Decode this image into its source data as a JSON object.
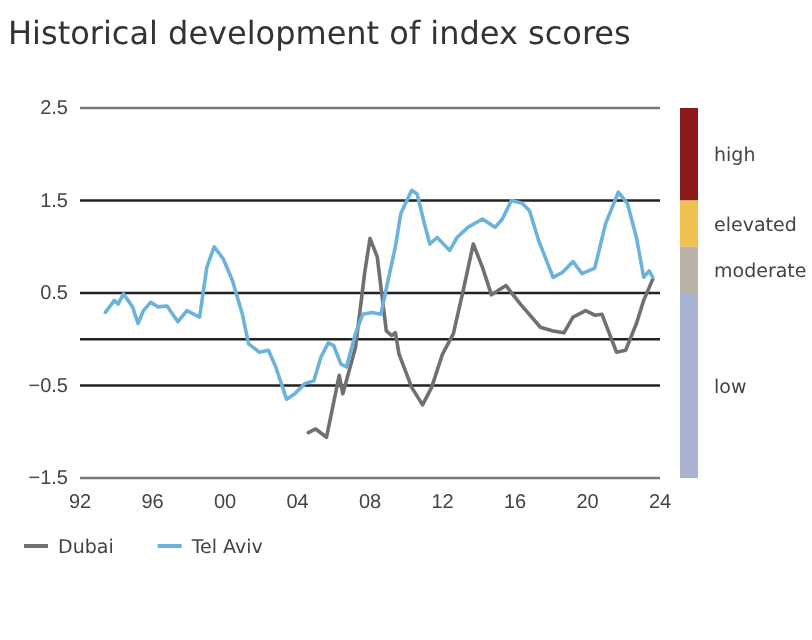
{
  "chart_data": {
    "type": "line",
    "title": "Historical development of index scores",
    "xlim": [
      1992,
      2024
    ],
    "xticks": [
      {
        "value": 1992,
        "label": "92"
      },
      {
        "value": 1996,
        "label": "96"
      },
      {
        "value": 2000,
        "label": "00"
      },
      {
        "value": 2004,
        "label": "04"
      },
      {
        "value": 2008,
        "label": "08"
      },
      {
        "value": 2012,
        "label": "12"
      },
      {
        "value": 2016,
        "label": "16"
      },
      {
        "value": 2020,
        "label": "20"
      },
      {
        "value": 2024,
        "label": "24"
      }
    ],
    "ylim": [
      -1.5,
      2.5
    ],
    "yticks": [
      {
        "value": -1.5,
        "label": "−1.5"
      },
      {
        "value": -0.5,
        "label": "−0.5"
      },
      {
        "value": 0,
        "label": null
      },
      0.5,
      1.5,
      2.5
    ],
    "grid": "y",
    "legend": "bottom",
    "line_style": "solid",
    "marker": "none",
    "annotations": [
      "high",
      "elevated",
      "moderate",
      "low"
    ],
    "series": [
      {
        "name": "Dubai",
        "color": "#707070",
        "x": [
          2004.6,
          2005.0,
          2005.6,
          2006.3,
          2006.5,
          2007.2,
          2007.7,
          2008.0,
          2008.4,
          2008.9,
          2009.2,
          2009.4,
          2009.6,
          2010.3,
          2010.9,
          2011.4,
          2012.0,
          2012.6,
          2013.1,
          2013.7,
          2014.2,
          2014.7,
          2015.5,
          2016.3,
          2017.4,
          2018.1,
          2018.7,
          2019.2,
          2019.9,
          2020.4,
          2020.8,
          2021.6,
          2022.1,
          2022.7,
          2023.1,
          2023.6
        ],
        "values": [
          -1.01,
          -0.97,
          -1.06,
          -0.39,
          -0.59,
          -0.09,
          0.71,
          1.09,
          0.89,
          0.09,
          0.04,
          0.07,
          -0.16,
          -0.52,
          -0.71,
          -0.52,
          -0.16,
          0.06,
          0.49,
          1.03,
          0.78,
          0.48,
          0.58,
          0.38,
          0.13,
          0.09,
          0.07,
          0.24,
          0.31,
          0.26,
          0.27,
          -0.14,
          -0.12,
          0.17,
          0.42,
          0.65
        ]
      },
      {
        "name": "Tel Aviv",
        "color": "#6bb3db",
        "x": [
          1993.4,
          1993.9,
          1994.1,
          1994.4,
          1994.9,
          1995.2,
          1995.5,
          1995.9,
          1996.3,
          1996.8,
          1997.4,
          1997.9,
          1998.6,
          1999.0,
          1999.4,
          1999.9,
          2000.4,
          2000.96,
          2001.3,
          2001.9,
          2002.4,
          2002.8,
          2003.4,
          2003.85,
          2004.4,
          2004.9,
          2005.3,
          2005.7,
          2006.0,
          2006.4,
          2006.7,
          2007.2,
          2007.6,
          2008.1,
          2008.6,
          2009.0,
          2009.4,
          2009.7,
          2010.3,
          2010.6,
          2011.0,
          2011.3,
          2011.7,
          2012.4,
          2012.8,
          2013.4,
          2014.2,
          2014.9,
          2015.3,
          2015.8,
          2016.4,
          2016.8,
          2017.3,
          2018.1,
          2018.6,
          2019.2,
          2019.7,
          2020.4,
          2021.0,
          2021.7,
          2022.2,
          2022.7,
          2023.1,
          2023.4,
          2023.6
        ],
        "values": [
          0.29,
          0.42,
          0.38,
          0.49,
          0.35,
          0.17,
          0.31,
          0.4,
          0.35,
          0.36,
          0.19,
          0.31,
          0.24,
          0.78,
          1.0,
          0.87,
          0.64,
          0.27,
          -0.05,
          -0.14,
          -0.12,
          -0.3,
          -0.65,
          -0.59,
          -0.48,
          -0.45,
          -0.19,
          -0.04,
          -0.07,
          -0.27,
          -0.3,
          0.06,
          0.27,
          0.29,
          0.27,
          0.64,
          1.0,
          1.36,
          1.61,
          1.57,
          1.25,
          1.03,
          1.1,
          0.96,
          1.1,
          1.21,
          1.3,
          1.21,
          1.3,
          1.5,
          1.47,
          1.39,
          1.07,
          0.67,
          0.72,
          0.84,
          0.71,
          0.77,
          1.25,
          1.59,
          1.47,
          1.1,
          0.67,
          0.74,
          0.67
        ]
      }
    ]
  }
}
